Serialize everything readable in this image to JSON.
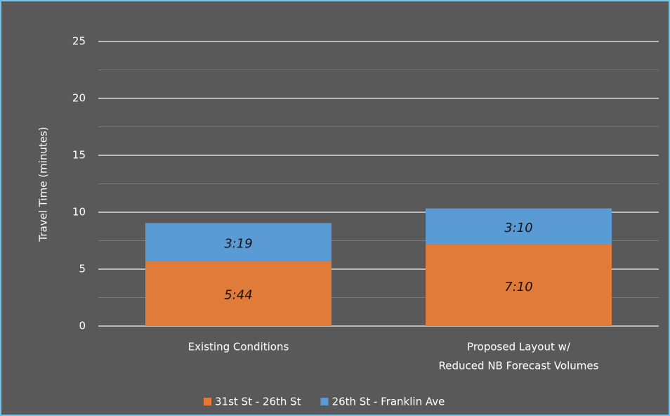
{
  "chart_data": {
    "type": "stacked_bar",
    "y_label": "Travel Time (minutes)",
    "categories": [
      [
        "Existing Conditions"
      ],
      [
        "Proposed Layout w/",
        "Reduced NB Forecast Volumes"
      ]
    ],
    "series": [
      {
        "name": "31st St - 26th St",
        "color": "#e07b39",
        "values": [
          5.7333,
          7.1667
        ],
        "value_labels": [
          "5:44",
          "7:10"
        ]
      },
      {
        "name": "26th St - Franklin Ave",
        "color": "#5b9bd5",
        "values": [
          3.3167,
          3.1667
        ],
        "value_labels": [
          "3:19",
          "3:10"
        ]
      }
    ],
    "ylim": [
      0,
      25
    ],
    "yticks": [
      0,
      5,
      10,
      15,
      20,
      25
    ],
    "minor_yticks": [
      2.5,
      7.5,
      12.5,
      17.5,
      22.5
    ],
    "grid": true,
    "legend": "bottom"
  }
}
